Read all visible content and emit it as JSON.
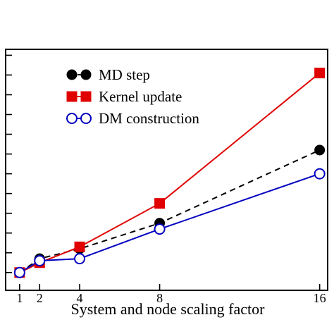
{
  "chart_data": {
    "type": "line",
    "xlabel": "System and node scaling factor",
    "x_ticks": [
      1,
      2,
      4,
      8,
      16
    ],
    "xlim": [
      0.3,
      16.4
    ],
    "ylim": [
      0.1,
      12.3
    ],
    "y_tick_values": [
      1,
      2,
      3,
      4,
      5,
      6,
      7,
      8,
      9,
      10,
      11,
      12
    ],
    "grid": false,
    "legend_position": "top-left",
    "series": [
      {
        "name": "MD step",
        "color": "#000000",
        "line_style": "dashed",
        "marker": "circle-filled",
        "x": [
          1,
          2,
          4,
          8,
          16
        ],
        "y": [
          1.0,
          1.7,
          2.2,
          3.5,
          7.2
        ]
      },
      {
        "name": "Kernel update",
        "color": "#e00000",
        "line_style": "solid",
        "marker": "square-filled",
        "x": [
          1,
          2,
          4,
          8,
          16
        ],
        "y": [
          1.0,
          1.5,
          2.3,
          4.5,
          11.1
        ]
      },
      {
        "name": "DM construction",
        "color": "#0000c0",
        "line_style": "solid",
        "marker": "circle-open",
        "x": [
          1,
          2,
          4,
          8,
          16
        ],
        "y": [
          1.0,
          1.6,
          1.7,
          3.2,
          6.0
        ]
      }
    ]
  }
}
